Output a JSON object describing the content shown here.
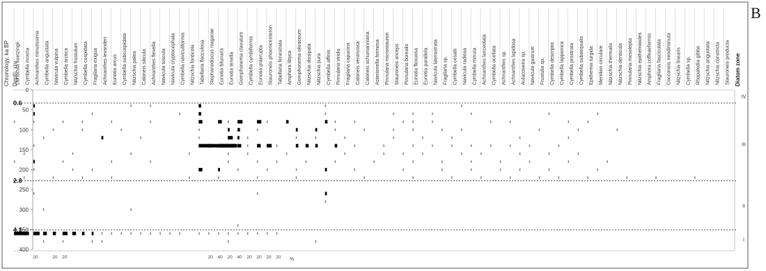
{
  "panel_label": "B",
  "chart_data": {
    "type": "heatmap",
    "title": "",
    "left_labels": {
      "chronology": "Chronology, ka BP",
      "depth": "Depth, cm"
    },
    "zone_label": "Diatom zone",
    "x_unit": "%",
    "ylim": [
      0,
      400
    ],
    "y_ticks": [
      0,
      50,
      100,
      150,
      200,
      250,
      300,
      350,
      400
    ],
    "ages": [
      {
        "label": "0.6",
        "depth": 33
      },
      {
        "label": "2.8",
        "depth": 228
      },
      {
        "label": "4.1",
        "depth": 351
      }
    ],
    "zones": [
      {
        "label": "IV",
        "depth": 16
      },
      {
        "label": "III",
        "depth": 135
      },
      {
        "label": "II",
        "depth": 290
      },
      {
        "label": "I",
        "depth": 375
      }
    ],
    "taxa": [
      "Denticula kuetzingii",
      "Cymbella incerta",
      "Achnanthes minutissima",
      "Cymbella angustata",
      "Navicula vulpina",
      "Cymbella arctica",
      "Nitzschia frustulum",
      "Cymbella cuspidata",
      "Fragilaria exigua",
      "Achnanthes levanderi",
      "Eunotia arcus",
      "Cymbella subcuspidata",
      "Nitzschia palea",
      "Caloneis silicula",
      "Achnanthes flexella",
      "Navicula tuscula",
      "Navicula cryptocephala",
      "Cymbella naviculiformis",
      "Nitzschia fonticola",
      "Tabellaria flocculosa",
      "Stephanodiscus niagarae",
      "Eunotia bilunaris",
      "Eunotia tenella",
      "Gomphonema clavatum",
      "Cymbella cymbiformis",
      "Eunotia praerupta",
      "Stauroneis phoenicenteron",
      "Tabellaria fenestrata",
      "Amphora libyca",
      "Gomphonema olivaceum",
      "Nitzschia dissipata",
      "Nitzschia pura",
      "Cymbella affinis",
      "Pinnularia viridis",
      "Fragilaria capucina",
      "Caloneis ventricosa",
      "Caloneis schumanniana",
      "Asterionella formosa",
      "Pinnularia microstauron",
      "Stauroneis anceps",
      "Pinnularia borealis",
      "Eunotia flexuosa",
      "Eunotia parallela",
      "Navicula laterostrata",
      "Fragilaria sp.",
      "Cymbella cesatii",
      "Navicula radiosa",
      "Cymbella minuta",
      "Achnanthes lanceolata",
      "Cymbella ocellata",
      "Achnanthes sp.",
      "Achnanthes lapidosa",
      "Aulacoseira sp.",
      "Navicula gastrum",
      "Frustulia sp.",
      "Cymbella descripta",
      "Cymbella lapponica",
      "Cymbella prostrata",
      "Cymbella subaequalis",
      "Epithemia turgida",
      "Meridion circulare",
      "Nitzschia thermalis",
      "Nitzschia denticula",
      "Pinnularia mesolepta",
      "Nitzschia epithemioides",
      "Amphora coffeaeformis",
      "Fragilaria fasciculata",
      "Cocconeis neodiminuta",
      "Nitzschia linearis",
      "Cymbella sp.",
      "Rhopalodia gibba",
      "Nitzschia angustata",
      "Nitzschia constricta",
      "Stauroneis producta"
    ],
    "x_tick_labels": [
      "20",
      "20",
      "20",
      "20",
      "40",
      "20",
      "40",
      "20",
      "20",
      "20",
      "20"
    ],
    "samples": [
      {
        "depth": 40,
        "present": [
          2,
          12,
          14,
          19,
          32,
          46
        ],
        "values": {
          "2": 2,
          "19": 4
        }
      },
      {
        "depth": 60,
        "present": [
          2,
          8,
          17,
          19,
          32,
          39,
          41,
          43,
          47,
          55,
          60
        ],
        "values": {
          "2": 2,
          "19": 4
        }
      },
      {
        "depth": 80,
        "present": [
          0,
          2,
          5,
          7,
          10,
          14,
          19,
          21,
          22,
          23,
          25,
          26,
          28,
          32,
          33,
          35,
          40,
          41,
          43,
          49,
          51,
          57,
          59
        ],
        "values": {
          "19": 6,
          "21": 6,
          "23": 8,
          "25": 7,
          "28": 4,
          "32": 4
        }
      },
      {
        "depth": 100,
        "present": [
          4,
          7,
          11,
          19,
          22,
          23,
          25,
          29,
          31,
          33,
          36,
          39,
          41,
          44,
          46,
          54,
          58,
          62
        ],
        "values": {
          "22": 3,
          "23": 4,
          "29": 3,
          "31": 3
        }
      },
      {
        "depth": 120,
        "present": [
          3,
          9,
          13,
          19,
          22,
          23,
          24,
          29,
          31,
          34,
          39,
          42,
          45,
          52,
          57
        ],
        "values": {
          "9": 3,
          "22": 8,
          "23": 3
        }
      },
      {
        "depth": 140,
        "present": [
          2,
          19,
          20,
          21,
          22,
          23,
          24,
          25,
          26,
          27,
          29,
          30,
          31,
          33,
          35,
          38,
          41,
          43,
          45,
          47,
          49,
          51,
          53,
          56
        ],
        "values": {
          "19": 20,
          "20": 46,
          "21": 16,
          "22": 12,
          "23": 6,
          "25": 6,
          "26": 8,
          "29": 4,
          "30": 5,
          "31": 4,
          "33": 4
        }
      },
      {
        "depth": 160,
        "present": [
          1,
          6,
          12,
          18,
          22,
          24,
          28,
          34,
          38,
          40,
          42,
          46,
          48,
          52,
          55,
          58
        ],
        "values": {}
      },
      {
        "depth": 180,
        "present": [
          0,
          2,
          5,
          10,
          14,
          22,
          25,
          27,
          30,
          33,
          37,
          41,
          44,
          47,
          50,
          53,
          57,
          61
        ],
        "values": {
          "2": 2
        }
      },
      {
        "depth": 200,
        "present": [
          2,
          6,
          8,
          19,
          21,
          23,
          26,
          29,
          32,
          35,
          40,
          44,
          47,
          50,
          52,
          55,
          60
        ],
        "values": {
          "19": 6,
          "21": 3,
          "32": 3
        }
      },
      {
        "depth": 220,
        "present": [
          1,
          4,
          7,
          10,
          18,
          21,
          25,
          29,
          36,
          41,
          45,
          48,
          51,
          54,
          56,
          59,
          63,
          66,
          70
        ],
        "values": {}
      },
      {
        "depth": 260,
        "present": [
          2,
          25,
          32
        ],
        "values": {
          "32": 3
        }
      },
      {
        "depth": 280,
        "present": [
          32
        ],
        "values": {}
      },
      {
        "depth": 300,
        "present": [
          3,
          12
        ],
        "values": {}
      },
      {
        "depth": 340,
        "present": [
          23
        ],
        "values": {}
      },
      {
        "depth": 360,
        "present": [
          0,
          1,
          2,
          3,
          4,
          5,
          6,
          7,
          8,
          9,
          10,
          11,
          12,
          13,
          14,
          15,
          16,
          17,
          19,
          20,
          21,
          22,
          23,
          24,
          25,
          26,
          27
        ],
        "values": {
          "0": 24,
          "1": 4,
          "2": 10,
          "3": 6,
          "4": 5,
          "5": 8,
          "6": 6,
          "7": 4,
          "8": 3
        }
      },
      {
        "depth": 380,
        "present": [
          3,
          5,
          8,
          9,
          22,
          31
        ],
        "values": {}
      }
    ]
  }
}
